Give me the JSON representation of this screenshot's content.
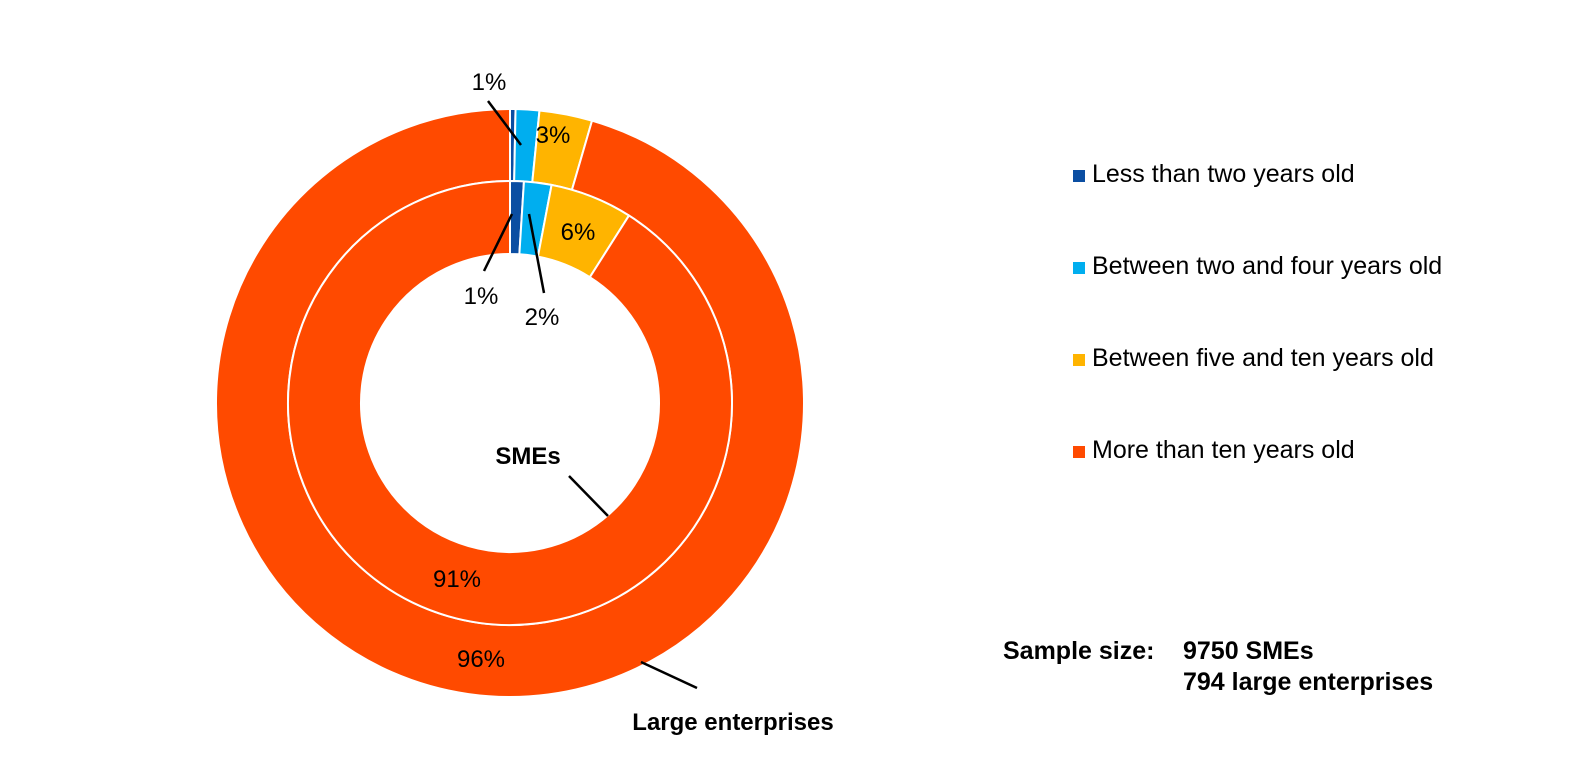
{
  "chart_data": {
    "type": "pie",
    "variant": "double-donut",
    "title": "",
    "categories": [
      "Less than two years old",
      "Between two and four years old",
      "Between five and ten years old",
      "More than ten years old"
    ],
    "colors": [
      "#0B4EA2",
      "#00AEEF",
      "#FFB400",
      "#FF4A00"
    ],
    "series": [
      {
        "name": "SMEs",
        "ring": "inner",
        "values": [
          1,
          2,
          6,
          91
        ],
        "labels": [
          "1%",
          "2%",
          "6%",
          "91%"
        ]
      },
      {
        "name": "Large enterprises",
        "ring": "outer",
        "values": [
          0.3,
          1.3,
          2.9,
          95.5
        ],
        "labels": [
          "",
          "1%",
          "3%",
          "96%"
        ]
      }
    ],
    "legend": "right"
  },
  "sample": {
    "label": "Sample size:",
    "lines": [
      "9750 SMEs",
      "794 large enterprises"
    ]
  }
}
